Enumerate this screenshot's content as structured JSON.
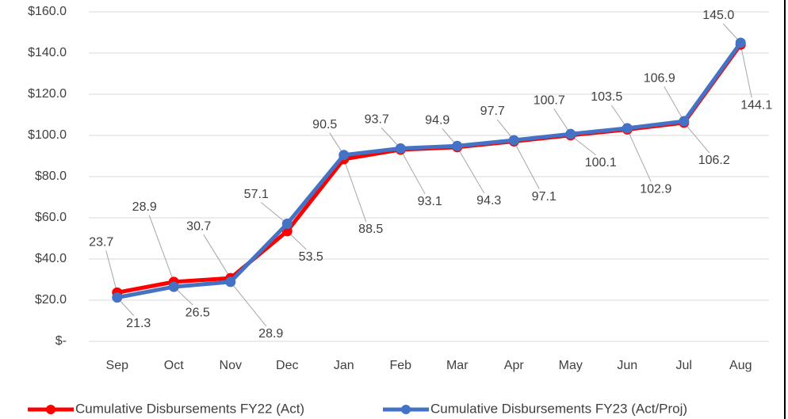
{
  "chart_data": {
    "type": "line",
    "categories": [
      "Sep",
      "Oct",
      "Nov",
      "Dec",
      "Jan",
      "Feb",
      "Mar",
      "Apr",
      "May",
      "Jun",
      "Jul",
      "Aug"
    ],
    "series": [
      {
        "name": "Cumulative Disbursements FY22 (Act)",
        "color": "#ff0000",
        "values": [
          23.7,
          28.9,
          30.7,
          53.5,
          88.5,
          93.1,
          94.3,
          97.1,
          100.1,
          102.9,
          106.2,
          144.1
        ],
        "value_labels": [
          "23.7",
          "28.9",
          "30.7",
          "53.5",
          "88.5",
          "93.1",
          "94.3",
          "97.1",
          "100.1",
          "102.9",
          "106.2",
          "144.1"
        ]
      },
      {
        "name": "Cumulative Disbursements FY23 (Act/Proj)",
        "color": "#4472c4",
        "values": [
          21.3,
          26.5,
          28.9,
          57.1,
          90.5,
          93.7,
          94.9,
          97.7,
          100.7,
          103.5,
          106.9,
          145.0
        ],
        "value_labels": [
          "21.3",
          "26.5",
          "28.9",
          "57.1",
          "90.5",
          "93.7",
          "94.9",
          "97.7",
          "100.7",
          "103.5",
          "106.9",
          "145.0"
        ]
      }
    ],
    "ylim": [
      0,
      160
    ],
    "yticks": [
      {
        "value": 0,
        "label": "$-"
      },
      {
        "value": 20,
        "label": "$20.0"
      },
      {
        "value": 40,
        "label": "$40.0"
      },
      {
        "value": 60,
        "label": "$60.0"
      },
      {
        "value": 80,
        "label": "$80.0"
      },
      {
        "value": 100,
        "label": "$100.0"
      },
      {
        "value": 120,
        "label": "$120.0"
      },
      {
        "value": 140,
        "label": "$140.0"
      },
      {
        "value": 160,
        "label": "$160.0"
      }
    ],
    "grid": true,
    "legend": "bottom"
  }
}
